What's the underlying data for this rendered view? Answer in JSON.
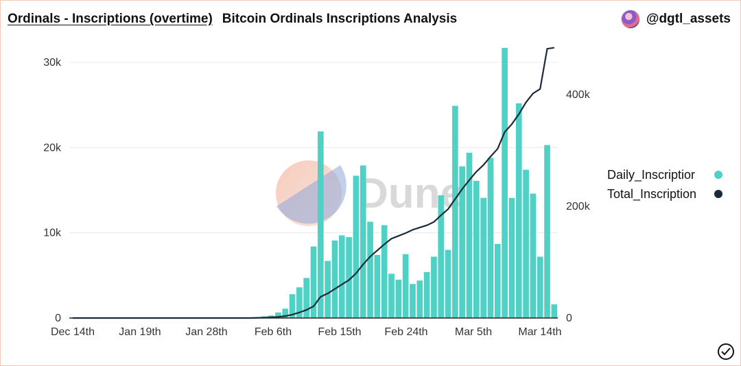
{
  "header": {
    "query_title": "Ordinals - Inscriptions (overtime)",
    "chart_title": "Bitcoin Ordinals Inscriptions Analysis",
    "author": "@dgtl_assets"
  },
  "watermark": "Dune",
  "icons": {
    "avatar": "avatar-icon",
    "verified": "check-circle-icon"
  },
  "colors": {
    "bars": "#4fd1c5",
    "line": "#1b2a38",
    "grid": "#e8e8e8"
  },
  "chart_data": {
    "type": "bar",
    "title": "Bitcoin Ordinals Inscriptions Analysis",
    "x_tick_labels": [
      "Dec 14th",
      "Jan 19th",
      "Jan 28th",
      "Feb 6th",
      "Feb 15th",
      "Feb 24th",
      "Mar 5th",
      "Mar 14th"
    ],
    "y_left_ticks": [
      "0",
      "10k",
      "20k",
      "30k"
    ],
    "y_right_ticks": [
      "0",
      "200k",
      "400k"
    ],
    "y_left_range": [
      0,
      30000
    ],
    "y_right_range": [
      0,
      400000
    ],
    "grid": "horizontal",
    "legend_position": "right",
    "series": [
      {
        "name": "Daily_Inscriptior",
        "type": "bar",
        "axis": "left",
        "values": [
          0,
          0,
          0,
          0,
          0,
          0,
          0,
          0,
          0,
          0,
          0,
          0,
          0,
          0,
          0,
          0,
          0,
          0,
          0,
          0,
          0,
          0,
          0,
          0,
          0,
          0,
          100,
          200,
          300,
          650,
          1100,
          2800,
          3600,
          4700,
          8400,
          21900,
          6700,
          9100,
          9700,
          9500,
          16700,
          17900,
          11300,
          7400,
          10900,
          5200,
          4500,
          7500,
          4000,
          4400,
          5400,
          7200,
          14400,
          8000,
          24900,
          17800,
          19400,
          16100,
          14100,
          18800,
          8700,
          31700,
          14100,
          25200,
          17400,
          14600,
          7200,
          20300,
          1600
        ]
      },
      {
        "name": "Total_Inscription",
        "type": "line",
        "axis": "right",
        "values": [
          0,
          0,
          0,
          0,
          0,
          0,
          0,
          0,
          0,
          0,
          0,
          0,
          0,
          0,
          0,
          0,
          0,
          0,
          0,
          0,
          0,
          0,
          0,
          0,
          0,
          0,
          300,
          600,
          1200,
          2100,
          3500,
          6000,
          10000,
          14500,
          21000,
          38000,
          44000,
          52000,
          60000,
          68000,
          80000,
          96000,
          110000,
          121000,
          132000,
          142000,
          147000,
          152000,
          158000,
          162000,
          166000,
          172000,
          184000,
          195000,
          213000,
          231000,
          247000,
          262000,
          274000,
          289000,
          303000,
          333000,
          347000,
          365000,
          386000,
          402000,
          410000,
          482000,
          484000
        ]
      }
    ]
  }
}
